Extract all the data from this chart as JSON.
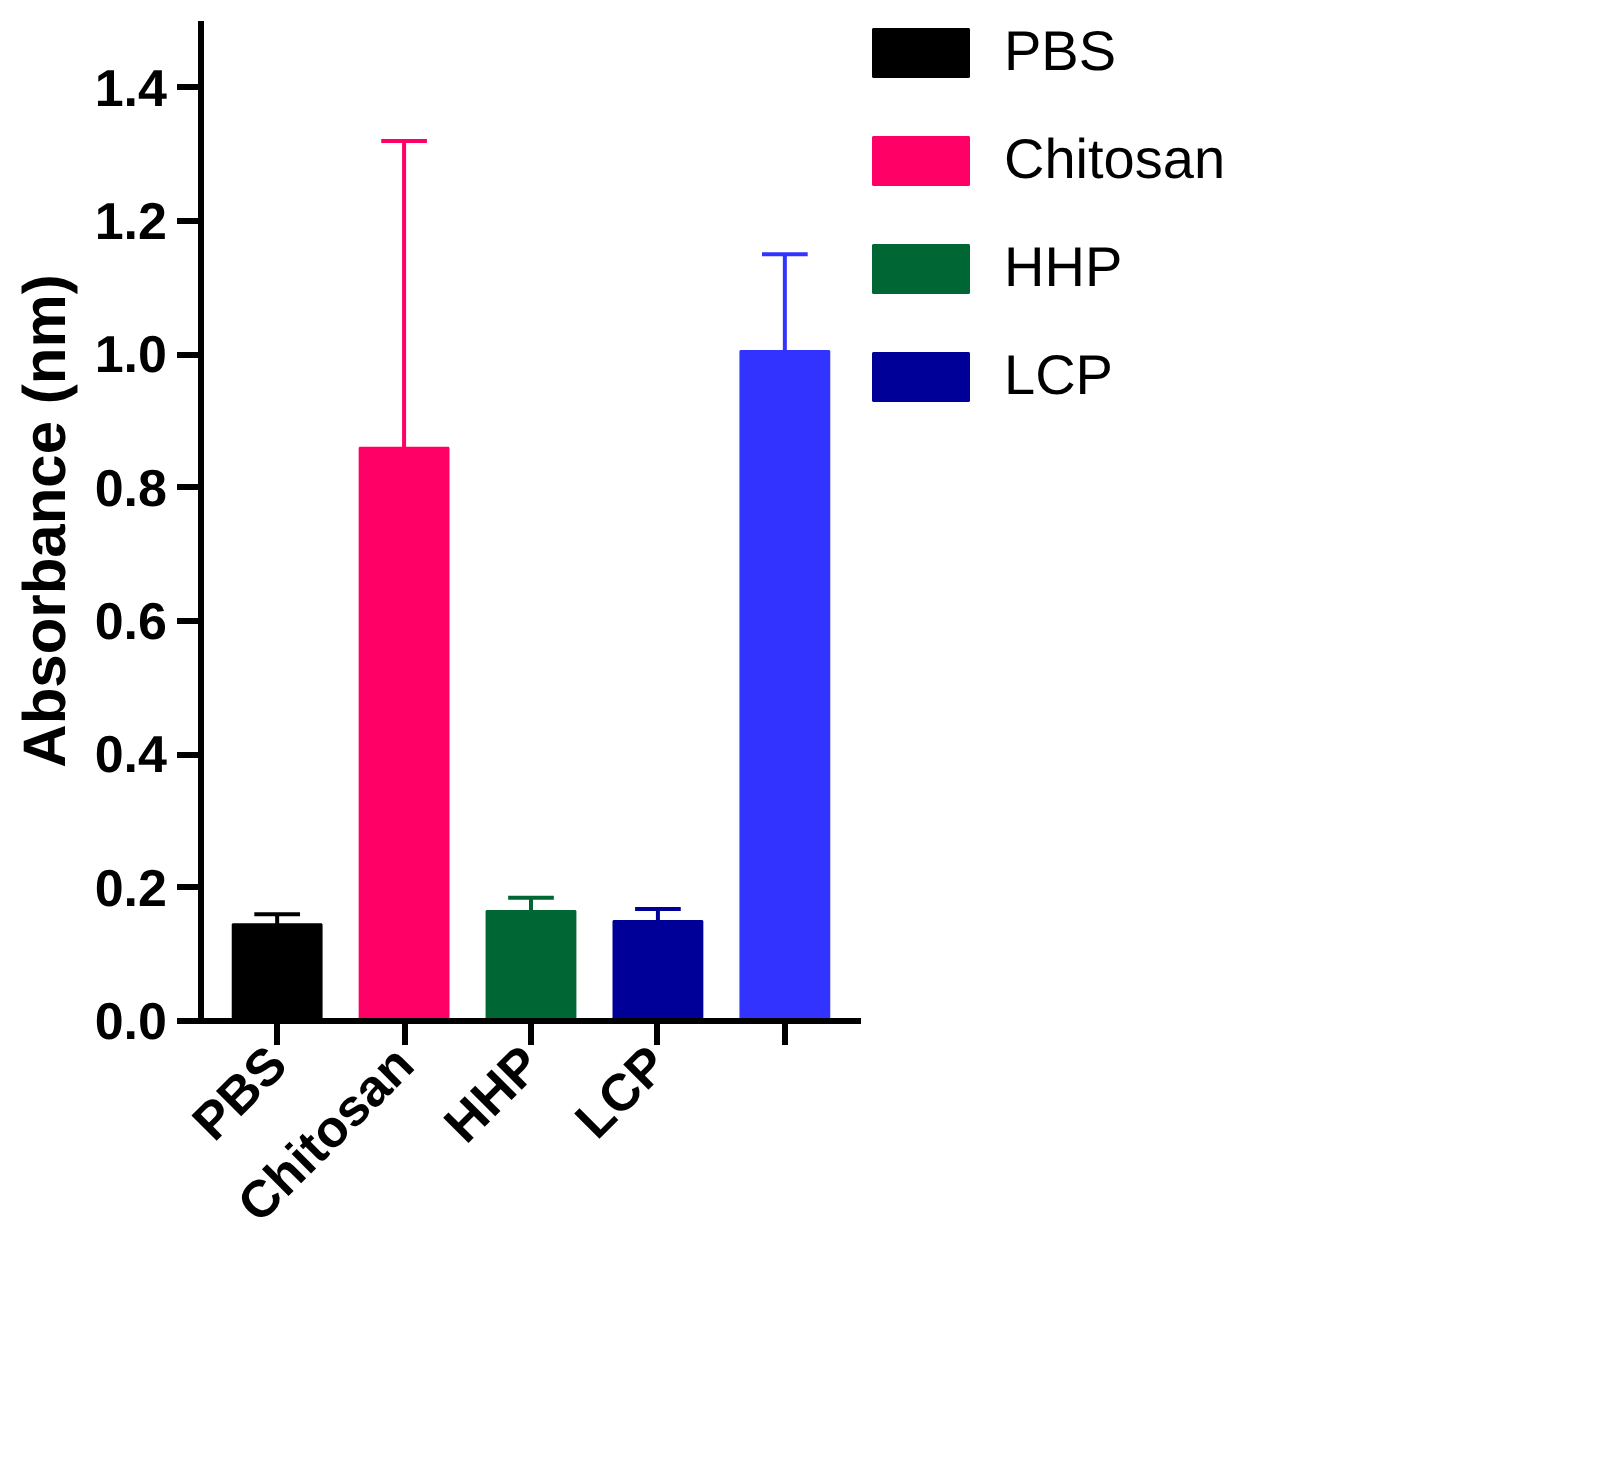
{
  "chart_data": {
    "type": "bar",
    "ylabel": "Absorbance (nm)",
    "categories": [
      "PBS",
      "Chitosan",
      "HHP",
      "LCP",
      null
    ],
    "series": [
      {
        "name": "PBS",
        "color": "#000000",
        "values": [
          0.145,
          null,
          null,
          null,
          null
        ],
        "errors": [
          [
            0.145,
            0.16
          ],
          null,
          null,
          null,
          null
        ]
      },
      {
        "name": "Chitosan",
        "color": "#ff0066",
        "values": [
          null,
          0.86,
          null,
          null,
          null
        ],
        "errors": [
          null,
          [
            0.86,
            1.32
          ],
          null,
          null,
          null
        ]
      },
      {
        "name": "HHP",
        "color": "#006633",
        "values": [
          null,
          null,
          0.165,
          null,
          null
        ],
        "errors": [
          null,
          null,
          [
            0.165,
            0.185
          ],
          null,
          null
        ]
      },
      {
        "name": "LCP",
        "color": "#000099",
        "values": [
          null,
          null,
          null,
          0.15,
          null
        ],
        "errors": [
          null,
          null,
          null,
          [
            0.15,
            0.168
          ],
          null
        ]
      },
      {
        "color": "#3333ff",
        "values": [
          null,
          null,
          null,
          null,
          1.005
        ],
        "errors": [
          null,
          null,
          null,
          null,
          [
            1.005,
            1.15
          ]
        ]
      }
    ],
    "ylim": [
      0,
      1.5
    ],
    "yticks": [
      {
        "value": 0,
        "label": "0.0"
      },
      {
        "value": 0.2,
        "label": "0.2"
      },
      {
        "value": 0.4,
        "label": "0.4"
      },
      {
        "value": 0.6,
        "label": "0.6"
      },
      {
        "value": 0.8,
        "label": "0.8"
      },
      {
        "value": 1.0,
        "label": "1.0"
      },
      {
        "value": 1.2,
        "label": "1.2"
      },
      {
        "value": 1.4,
        "label": "1.4"
      }
    ],
    "grid": false,
    "legend": "top right"
  }
}
